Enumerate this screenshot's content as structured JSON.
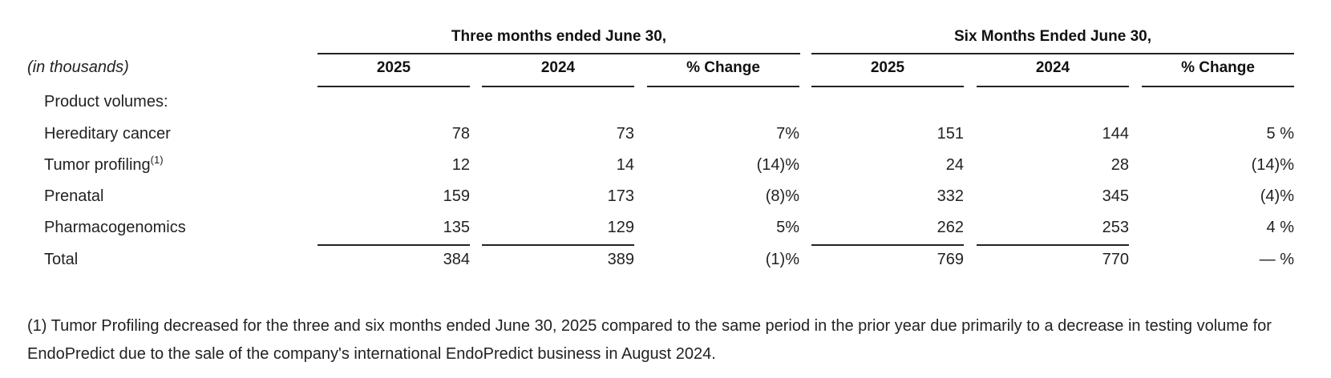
{
  "table": {
    "groups": [
      "Three months ended June 30,",
      "Six Months Ended June 30,"
    ],
    "units_label": "(in thousands)",
    "columns": [
      "2025",
      "2024",
      "% Change",
      "2025",
      "2024",
      "% Change"
    ],
    "section_label": "Product volumes:",
    "rows": [
      {
        "label": "Hereditary cancer",
        "footnote_ref": "",
        "values": [
          "78",
          "73",
          "7%",
          "151",
          "144",
          "5 %"
        ]
      },
      {
        "label": "Tumor profiling",
        "footnote_ref": "(1)",
        "values": [
          "12",
          "14",
          "(14)%",
          "24",
          "28",
          "(14)%"
        ]
      },
      {
        "label": "Prenatal",
        "footnote_ref": "",
        "values": [
          "159",
          "173",
          "(8)%",
          "332",
          "345",
          "(4)%"
        ]
      },
      {
        "label": "Pharmacogenomics",
        "footnote_ref": "",
        "values": [
          "135",
          "129",
          "5%",
          "262",
          "253",
          "4 %"
        ]
      },
      {
        "label": "Total",
        "footnote_ref": "",
        "values": [
          "384",
          "389",
          "(1)%",
          "769",
          "770",
          "— %"
        ]
      }
    ]
  },
  "footnote": "(1) Tumor Profiling decreased for the three and six months ended June 30, 2025 compared to the same period in the prior year due primarily to a decrease in testing volume for EndoPredict due to the sale of the company's international EndoPredict business in August 2024."
}
